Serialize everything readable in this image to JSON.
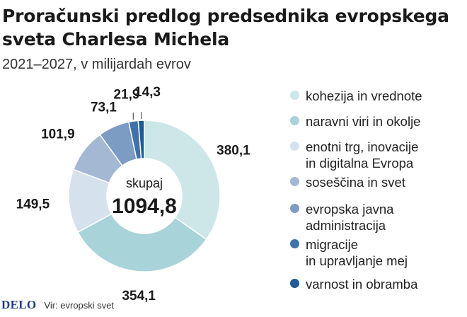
{
  "title": "Proračunski predlog predsednika evropskega sveta Charlesa Michela",
  "subtitle": "2021–2027, v milijardah evrov",
  "footer": {
    "logo": "DELO",
    "source": "Vir: evropski svet"
  },
  "chart_data": {
    "type": "pie",
    "title": "Proračunski predlog predsednika evropskega sveta Charlesa Michela",
    "subtitle": "2021–2027, v milijardah evrov",
    "center_label": "skupaj",
    "total": "1094,8",
    "legend_placement": "right",
    "slices": [
      {
        "name": "kohezija in vrednote",
        "value": 380.1,
        "label": "380,1",
        "color": "#cde6e8"
      },
      {
        "name": "naravni viri in okolje",
        "value": 354.1,
        "label": "354,1",
        "color": "#a8d3d8"
      },
      {
        "name": "enotni trg, inovacije\nin digitalna Evropa",
        "value": 149.5,
        "label": "149,5",
        "color": "#d6e1ee"
      },
      {
        "name": "soseščina in svet",
        "value": 101.9,
        "label": "101,9",
        "color": "#a4b8d4"
      },
      {
        "name": "evropska javna\nadministracija",
        "value": 73.1,
        "label": "73,1",
        "color": "#7c9cc4"
      },
      {
        "name": "migracije\nin upravljanje mej",
        "value": 21.9,
        "label": "21,9",
        "color": "#3f72a8"
      },
      {
        "name": "varnost in obramba",
        "value": 14.3,
        "label": "14,3",
        "color": "#1d5b99"
      }
    ]
  }
}
